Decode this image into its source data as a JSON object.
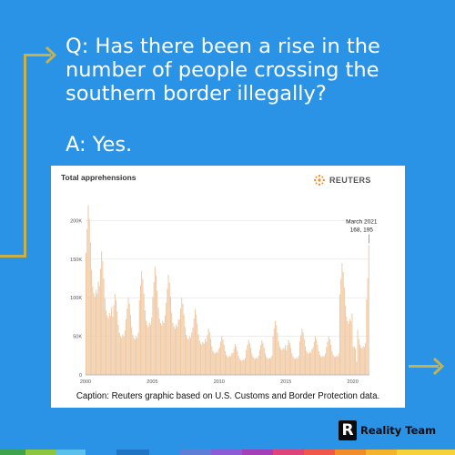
{
  "qa": {
    "question": "Q: Has there been a rise in the number of people crossing the southern border illegally?",
    "answer": "A: Yes."
  },
  "figure": {
    "title": "Total apprehensions",
    "source_brand": "REUTERS",
    "caption": "Caption: Reuters graphic based on U.S. Customs and Border Protection data."
  },
  "chart_data": {
    "type": "bar",
    "title": "Total apprehensions",
    "xlabel": "",
    "ylabel": "",
    "x_range": [
      "2000-01",
      "2021-03"
    ],
    "x_ticks": [
      "2000",
      "2005",
      "2010",
      "2015",
      "2020"
    ],
    "ylim": [
      0,
      250000
    ],
    "y_ticks": [
      "0",
      "50K",
      "100K",
      "150K",
      "200K"
    ],
    "grid": true,
    "annotation": {
      "label": "March 2021",
      "value_text": "168, 195",
      "value": 168195
    },
    "yearly_monthly_peaks": [
      {
        "year": 2000,
        "value": 220000
      },
      {
        "year": 2001,
        "value": 160000
      },
      {
        "year": 2002,
        "value": 105000
      },
      {
        "year": 2003,
        "value": 100000
      },
      {
        "year": 2004,
        "value": 135000
      },
      {
        "year": 2005,
        "value": 140000
      },
      {
        "year": 2006,
        "value": 130000
      },
      {
        "year": 2007,
        "value": 100000
      },
      {
        "year": 2008,
        "value": 85000
      },
      {
        "year": 2009,
        "value": 60000
      },
      {
        "year": 2010,
        "value": 50000
      },
      {
        "year": 2011,
        "value": 40000
      },
      {
        "year": 2012,
        "value": 45000
      },
      {
        "year": 2013,
        "value": 45000
      },
      {
        "year": 2014,
        "value": 70000
      },
      {
        "year": 2015,
        "value": 45000
      },
      {
        "year": 2016,
        "value": 60000
      },
      {
        "year": 2017,
        "value": 50000
      },
      {
        "year": 2018,
        "value": 50000
      },
      {
        "year": 2019,
        "value": 145000
      },
      {
        "year": 2020,
        "value": 75000
      },
      {
        "year": 2021,
        "value": 172000
      }
    ]
  },
  "brand": {
    "name": "Reality Team",
    "mark": "R"
  },
  "colors": {
    "background": "#2b93e6",
    "bars": "#f0c9a2",
    "connector": "#c8b04a",
    "text_on_background": "#ffffff"
  }
}
